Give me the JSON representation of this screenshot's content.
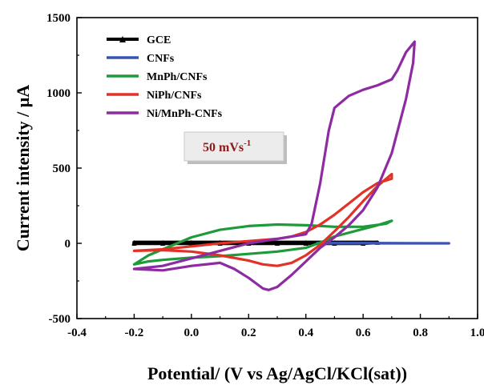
{
  "chart_data": {
    "type": "line",
    "title": "",
    "xlabel": "Potential/ (V vs Ag/AgCl/KCl(sat))",
    "ylabel": "Current intensity / μA",
    "xlim": [
      -0.4,
      1.0
    ],
    "ylim": [
      -500,
      1500
    ],
    "xticks": [
      "-0.4",
      "-0.2",
      "0.0",
      "0.2",
      "0.4",
      "0.6",
      "0.8",
      "1.0"
    ],
    "yticks": [
      "-500",
      "0",
      "500",
      "1000",
      "1500"
    ],
    "grid": false,
    "legend_position": "top-left",
    "annotation": {
      "base": "50 mVs",
      "sup": "-1"
    },
    "series": [
      {
        "name": "GCE",
        "color": "#000000",
        "x": [
          -0.2,
          -0.1,
          0.0,
          0.1,
          0.2,
          0.3,
          0.4,
          0.5,
          0.6,
          0.65,
          0.6,
          0.5,
          0.4,
          0.3,
          0.2,
          0.1,
          0.0,
          -0.1,
          -0.2
        ],
        "y": [
          6,
          6,
          6,
          6,
          6,
          6,
          6,
          6,
          6,
          6,
          0,
          0,
          0,
          0,
          0,
          0,
          0,
          0,
          0
        ]
      },
      {
        "name": "CNFs",
        "color": "#3a55b0",
        "x": [
          0.44,
          0.6,
          0.9,
          0.6,
          0.44
        ],
        "y": [
          2,
          2,
          0,
          0,
          0
        ]
      },
      {
        "name": "MnPh/CNFs",
        "color": "#1e9a3a",
        "x": [
          -0.2,
          -0.15,
          -0.1,
          0.0,
          0.1,
          0.2,
          0.3,
          0.4,
          0.5,
          0.6,
          0.68,
          0.7,
          0.65,
          0.6,
          0.5,
          0.45,
          0.4,
          0.3,
          0.2,
          0.1,
          0.0,
          -0.1,
          -0.15,
          -0.2
        ],
        "y": [
          -140,
          -80,
          -40,
          40,
          90,
          115,
          125,
          120,
          110,
          110,
          130,
          150,
          120,
          95,
          45,
          5,
          -30,
          -55,
          -70,
          -85,
          -95,
          -110,
          -120,
          -140
        ]
      },
      {
        "name": "NiPh/CNFs",
        "color": "#e23228",
        "x": [
          -0.2,
          -0.1,
          0.0,
          0.1,
          0.2,
          0.3,
          0.35,
          0.4,
          0.45,
          0.5,
          0.55,
          0.6,
          0.65,
          0.7,
          0.7,
          0.65,
          0.6,
          0.55,
          0.5,
          0.45,
          0.4,
          0.35,
          0.3,
          0.25,
          0.2,
          0.1,
          0.0,
          -0.1,
          -0.2
        ],
        "y": [
          -50,
          -40,
          -20,
          0,
          15,
          30,
          45,
          75,
          125,
          190,
          265,
          340,
          400,
          430,
          460,
          380,
          280,
          175,
          80,
          -10,
          -80,
          -130,
          -150,
          -140,
          -115,
          -80,
          -55,
          -45,
          -50
        ]
      },
      {
        "name": "Ni/MnPh-CNFs",
        "color": "#8e2ba3",
        "x": [
          -0.2,
          -0.1,
          0.0,
          0.1,
          0.2,
          0.3,
          0.4,
          0.42,
          0.45,
          0.48,
          0.5,
          0.55,
          0.6,
          0.65,
          0.7,
          0.72,
          0.75,
          0.78,
          0.775,
          0.75,
          0.7,
          0.65,
          0.6,
          0.55,
          0.5,
          0.45,
          0.4,
          0.35,
          0.3,
          0.27,
          0.25,
          0.2,
          0.15,
          0.1,
          0.0,
          -0.1,
          -0.2
        ],
        "y": [
          -170,
          -150,
          -100,
          -50,
          0,
          30,
          60,
          130,
          400,
          750,
          900,
          980,
          1020,
          1050,
          1090,
          1150,
          1270,
          1340,
          1200,
          960,
          600,
          370,
          220,
          120,
          40,
          -30,
          -120,
          -210,
          -290,
          -310,
          -300,
          -230,
          -170,
          -130,
          -150,
          -180,
          -170
        ]
      }
    ]
  }
}
